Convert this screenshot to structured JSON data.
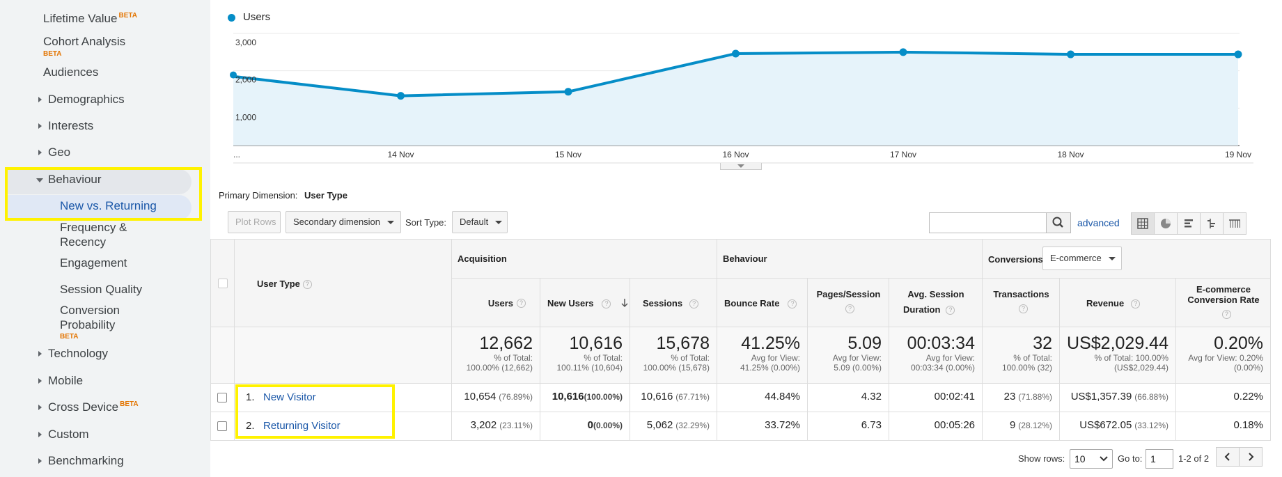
{
  "sidebar": {
    "lifetime_value": "Lifetime Value",
    "beta": "BETA",
    "cohort_analysis": "Cohort Analysis",
    "audiences": "Audiences",
    "demographics": "Demographics",
    "interests": "Interests",
    "geo": "Geo",
    "behaviour": "Behaviour",
    "new_vs_returning": "New vs. Returning",
    "frequency_1": "Frequency &",
    "frequency_2": "Recency",
    "engagement": "Engagement",
    "session_quality": "Session Quality",
    "conversion_1": "Conversion",
    "conversion_2": "Probability",
    "technology": "Technology",
    "mobile": "Mobile",
    "cross_device": "Cross Device",
    "custom": "Custom",
    "benchmarking": "Benchmarking"
  },
  "chart": {
    "legend": "Users",
    "color": "#058dc7"
  },
  "chart_data": {
    "type": "area",
    "series": [
      {
        "name": "Users",
        "values": [
          1850,
          1330,
          1440,
          2460,
          2500,
          2440,
          2440
        ]
      }
    ],
    "categories": [
      "...",
      "14 Nov",
      "15 Nov",
      "16 Nov",
      "17 Nov",
      "18 Nov",
      "19 Nov"
    ],
    "y_ticks": [
      "3,000",
      "2,000",
      "1,000"
    ],
    "ylim": [
      0,
      3000
    ]
  },
  "controls": {
    "primary_dimension_label": "Primary Dimension:",
    "primary_dimension_value": "User Type",
    "plot_rows": "Plot Rows",
    "secondary_dimension": "Secondary dimension",
    "sort_type_label": "Sort Type:",
    "sort_type_value": "Default",
    "search_value": "",
    "advanced": "advanced"
  },
  "table": {
    "group_acquisition": "Acquisition",
    "group_behaviour": "Behaviour",
    "group_conversions": "Conversions",
    "conversions_select": "E-commerce",
    "col_user_type": "User Type",
    "columns": {
      "users": "Users",
      "new_users": "New Users",
      "sessions": "Sessions",
      "bounce_rate": "Bounce Rate",
      "pages_session": "Pages/Session",
      "avg_duration_1": "Avg. Session",
      "avg_duration_2": "Duration",
      "transactions": "Transactions",
      "revenue": "Revenue",
      "ecr_1": "E-commerce",
      "ecr_2": "Conversion Rate"
    },
    "totals": {
      "users": "12,662",
      "users_s1": "% of Total:",
      "users_s2": "100.00% (12,662)",
      "new_users": "10,616",
      "new_users_s1": "% of Total:",
      "new_users_s2": "100.11% (10,604)",
      "sessions": "15,678",
      "sessions_s1": "% of Total:",
      "sessions_s2": "100.00% (15,678)",
      "bounce": "41.25%",
      "bounce_s1": "Avg for View:",
      "bounce_s2": "41.25% (0.00%)",
      "pages": "5.09",
      "pages_s1": "Avg for View:",
      "pages_s2": "5.09 (0.00%)",
      "duration": "00:03:34",
      "duration_s1": "Avg for View:",
      "duration_s2": "00:03:34 (0.00%)",
      "transactions": "32",
      "transactions_s1": "% of Total:",
      "transactions_s2": "100.00% (32)",
      "revenue": "US$2,029.44",
      "revenue_s1": "% of Total: 100.00%",
      "revenue_s2": "(US$2,029.44)",
      "ecr": "0.20%",
      "ecr_s1": "Avg for View: 0.20%",
      "ecr_s2": "(0.00%)"
    },
    "rows": [
      {
        "index": "1.",
        "name": "New Visitor",
        "users": "10,654",
        "users_pct": "(76.89%)",
        "new_users": "10,616",
        "new_users_pct": "(100.00%)",
        "sessions": "10,616",
        "sessions_pct": "(67.71%)",
        "bounce": "44.84%",
        "pages": "4.32",
        "duration": "00:02:41",
        "transactions": "23",
        "transactions_pct": "(71.88%)",
        "revenue": "US$1,357.39",
        "revenue_pct": "(66.88%)",
        "ecr": "0.22%"
      },
      {
        "index": "2.",
        "name": "Returning Visitor",
        "users": "3,202",
        "users_pct": "(23.11%)",
        "new_users": "0",
        "new_users_pct": "(0.00%)",
        "sessions": "5,062",
        "sessions_pct": "(32.29%)",
        "bounce": "33.72%",
        "pages": "6.73",
        "duration": "00:05:26",
        "transactions": "9",
        "transactions_pct": "(28.12%)",
        "revenue": "US$672.05",
        "revenue_pct": "(33.12%)",
        "ecr": "0.18%"
      }
    ]
  },
  "footer": {
    "show_rows_label": "Show rows:",
    "show_rows_value": "10",
    "goto_label": "Go to:",
    "goto_value": "1",
    "range": "1-2 of 2"
  },
  "highlight_color": "#fff200"
}
